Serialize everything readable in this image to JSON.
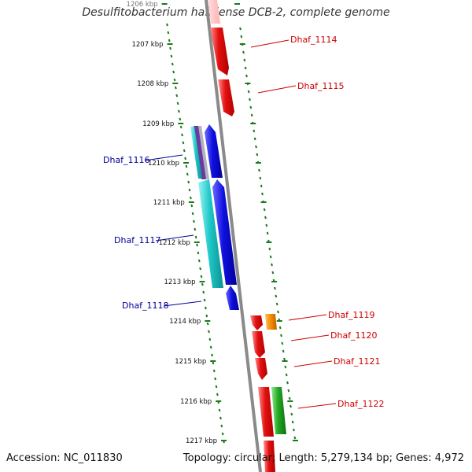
{
  "title": "Desulfitobacterium hafniense DCB-2, complete genome",
  "accession": "Accession: NC_011830",
  "topology": "Topology: circular; Length: 5,279,134 bp; Genes: 4,972",
  "colors": {
    "backbone": "#888888",
    "ticks": "#1a7a1a",
    "red": "#e41010",
    "blue": "#1010e0",
    "cyan": "#1ec8c8",
    "orange": "#f08c00",
    "green": "#22a822",
    "label_red": "#cc0000",
    "label_blue": "#000099"
  },
  "kbp_labels": [
    "1206 kbp",
    "1207 kbp",
    "1208 kbp",
    "1209 kbp",
    "1210 kbp",
    "1211 kbp",
    "1212 kbp",
    "1213 kbp",
    "1214 kbp",
    "1215 kbp",
    "1216 kbp",
    "1217 kbp"
  ],
  "genes": [
    {
      "name": "Dhaf_1114",
      "strand": "right",
      "color": "red"
    },
    {
      "name": "Dhaf_1115",
      "strand": "right",
      "color": "red"
    },
    {
      "name": "Dhaf_1116",
      "strand": "left",
      "color": "cyan"
    },
    {
      "name": "Dhaf_1117",
      "strand": "left",
      "color": "cyan"
    },
    {
      "name": "Dhaf_1118",
      "strand": "left",
      "color": "blue"
    },
    {
      "name": "Dhaf_1119",
      "strand": "right",
      "color": "orange"
    },
    {
      "name": "Dhaf_1120",
      "strand": "right",
      "color": "red"
    },
    {
      "name": "Dhaf_1121",
      "strand": "right",
      "color": "red"
    },
    {
      "name": "Dhaf_1122",
      "strand": "right",
      "color": "green"
    }
  ]
}
